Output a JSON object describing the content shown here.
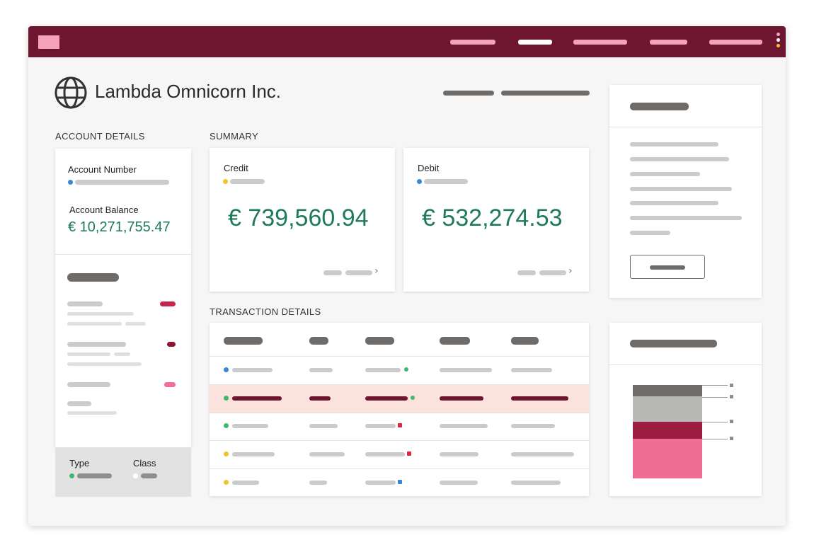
{
  "header": {
    "company_name": "Lambda Omnicorn Inc."
  },
  "account_details": {
    "section_label": "ACCOUNT DETAILS",
    "account_number_label": "Account Number",
    "account_balance_label": "Account Balance",
    "account_balance_value": "€ 10,271,755.47",
    "type_label": "Type",
    "class_label": "Class"
  },
  "summary": {
    "section_label": "SUMMARY",
    "credit_label": "Credit",
    "credit_value": "€ 739,560.94",
    "debit_label": "Debit",
    "debit_value": "€ 532,274.53"
  },
  "transactions": {
    "section_label": "TRANSACTION DETAILS",
    "highlighted_row": 2
  },
  "colors": {
    "brand": "#6e1530",
    "nav_pink": "#f5a3bd",
    "money_green": "#1f7a5c",
    "highlight_row": "#fbe2dd",
    "status_blue": "#3a86d4",
    "status_yellow": "#f2c12e",
    "status_green": "#3dba6f",
    "status_red": "#e0243b",
    "bar_gray_dark": "#6f6b68",
    "bar_gray_light": "#b8b8b6",
    "bar_crimson": "#9b1e40",
    "bar_pink": "#f06d93"
  },
  "icons": {
    "logo": "globe-icon",
    "chevron": "chevron-right-icon"
  },
  "stacked_bar": {
    "segments": [
      {
        "color": "#6f6b68",
        "value": 16
      },
      {
        "color": "#b8b8b6",
        "value": 36
      },
      {
        "color": "#9b1e40",
        "value": 24
      },
      {
        "color": "#f06d93",
        "value": 56
      }
    ]
  }
}
